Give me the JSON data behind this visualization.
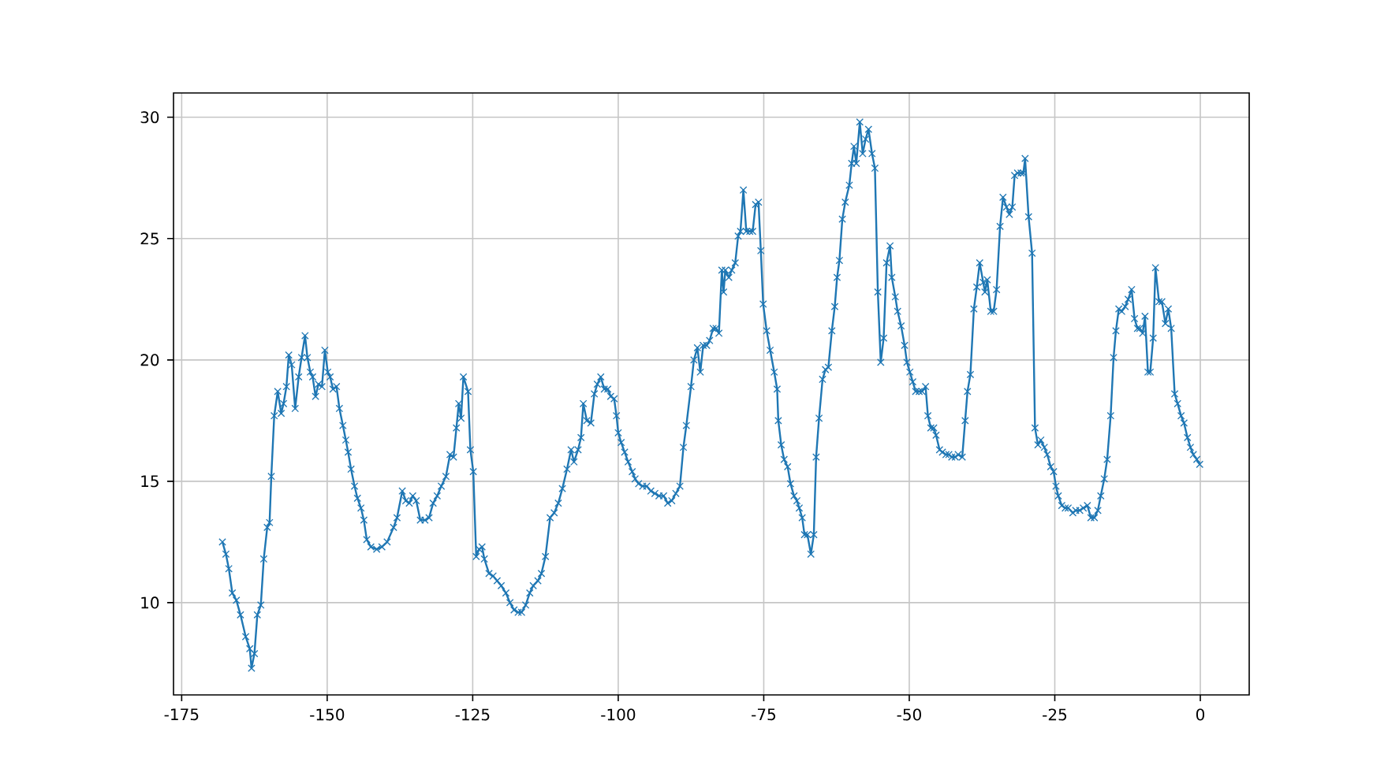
{
  "chart_data": {
    "type": "line",
    "color": "#1f77b4",
    "marker": "cross",
    "line_style": "solid",
    "grid": true,
    "x": [
      -168.0,
      -167.4,
      -166.9,
      -166.3,
      -165.6,
      -164.9,
      -164.0,
      -163.3,
      -163.0,
      -162.5,
      -162.0,
      -161.4,
      -160.9,
      -160.3,
      -159.9,
      -159.6,
      -159.1,
      -158.5,
      -157.9,
      -157.5,
      -157.0,
      -156.6,
      -156.1,
      -155.5,
      -154.9,
      -154.4,
      -153.8,
      -153.4,
      -152.9,
      -152.5,
      -152.0,
      -151.5,
      -150.9,
      -150.4,
      -149.9,
      -149.5,
      -149.0,
      -148.4,
      -147.9,
      -147.3,
      -146.8,
      -146.4,
      -145.9,
      -145.3,
      -144.8,
      -144.2,
      -143.7,
      -143.2,
      -142.5,
      -141.5,
      -140.6,
      -139.7,
      -138.6,
      -138.0,
      -137.1,
      -136.5,
      -135.9,
      -135.3,
      -134.7,
      -134.0,
      -133.2,
      -132.5,
      -131.8,
      -131.1,
      -130.4,
      -129.6,
      -128.9,
      -128.3,
      -127.8,
      -127.4,
      -127.0,
      -126.6,
      -125.8,
      -125.4,
      -124.9,
      -124.4,
      -123.9,
      -123.4,
      -123.0,
      -122.2,
      -121.5,
      -120.8,
      -120.1,
      -119.3,
      -118.6,
      -117.9,
      -117.2,
      -116.6,
      -115.9,
      -115.2,
      -114.6,
      -113.8,
      -113.2,
      -112.5,
      -111.7,
      -111.0,
      -110.3,
      -109.6,
      -108.8,
      -108.1,
      -107.6,
      -106.9,
      -106.4,
      -106.0,
      -105.4,
      -104.7,
      -104.1,
      -103.6,
      -103.0,
      -102.4,
      -101.8,
      -101.3,
      -100.7,
      -100.3,
      -100.0,
      -99.5,
      -98.9,
      -98.3,
      -97.6,
      -97.1,
      -96.5,
      -95.8,
      -95.1,
      -94.4,
      -93.7,
      -93.0,
      -92.2,
      -91.5,
      -90.8,
      -90.1,
      -89.4,
      -88.8,
      -88.3,
      -87.5,
      -87.0,
      -86.4,
      -85.9,
      -85.4,
      -84.8,
      -84.3,
      -83.7,
      -83.2,
      -82.7,
      -82.2,
      -81.9,
      -81.6,
      -81.0,
      -80.5,
      -79.9,
      -79.4,
      -79.0,
      -78.5,
      -78.0,
      -77.4,
      -76.9,
      -76.4,
      -75.9,
      -75.5,
      -75.1,
      -74.5,
      -73.9,
      -73.2,
      -72.7,
      -72.5,
      -72.0,
      -71.5,
      -70.9,
      -70.4,
      -69.8,
      -69.3,
      -68.9,
      -68.4,
      -68.0,
      -67.5,
      -66.9,
      -66.4,
      -66.0,
      -65.5,
      -64.9,
      -64.4,
      -63.9,
      -63.3,
      -62.8,
      -62.4,
      -62.0,
      -61.5,
      -61.0,
      -60.3,
      -59.9,
      -59.5,
      -59.1,
      -58.5,
      -58.0,
      -57.5,
      -57.0,
      -56.4,
      -55.9,
      -55.4,
      -54.9,
      -54.4,
      -53.9,
      -53.3,
      -53.0,
      -52.4,
      -52.0,
      -51.4,
      -50.8,
      -50.4,
      -49.9,
      -49.4,
      -48.9,
      -48.3,
      -47.8,
      -47.2,
      -46.8,
      -46.3,
      -45.8,
      -45.4,
      -44.8,
      -44.3,
      -43.7,
      -43.2,
      -42.7,
      -42.1,
      -41.6,
      -40.9,
      -40.4,
      -40.0,
      -39.5,
      -38.9,
      -38.4,
      -37.9,
      -37.3,
      -37.0,
      -36.6,
      -36.0,
      -35.5,
      -35.0,
      -34.4,
      -33.9,
      -33.3,
      -32.8,
      -32.3,
      -31.9,
      -31.4,
      -30.8,
      -30.4,
      -30.1,
      -29.5,
      -28.9,
      -28.4,
      -27.9,
      -27.4,
      -26.8,
      -26.3,
      -25.7,
      -25.2,
      -24.8,
      -24.4,
      -23.8,
      -23.2,
      -22.7,
      -21.9,
      -21.4,
      -20.7,
      -20.1,
      -19.4,
      -18.8,
      -18.2,
      -17.6,
      -17.1,
      -16.5,
      -16.0,
      -15.4,
      -14.9,
      -14.5,
      -14.0,
      -13.5,
      -12.9,
      -12.4,
      -11.8,
      -11.3,
      -10.8,
      -10.4,
      -9.9,
      -9.5,
      -9.0,
      -8.6,
      -8.1,
      -7.7,
      -7.1,
      -6.6,
      -6.0,
      -5.5,
      -5.0,
      -4.4,
      -3.9,
      -3.3,
      -2.8,
      -2.2,
      -1.7,
      -1.2,
      -0.6,
      -0.1
    ],
    "values": [
      12.5,
      12.0,
      11.4,
      10.4,
      10.1,
      9.5,
      8.6,
      8.1,
      7.3,
      7.9,
      9.5,
      9.9,
      11.8,
      13.1,
      13.3,
      15.2,
      17.7,
      18.7,
      17.8,
      18.2,
      18.9,
      20.2,
      19.8,
      18.0,
      19.3,
      20.1,
      21.0,
      20.1,
      19.5,
      19.3,
      18.5,
      19.0,
      18.9,
      20.4,
      19.5,
      19.3,
      18.8,
      18.9,
      18.0,
      17.3,
      16.7,
      16.2,
      15.5,
      14.8,
      14.3,
      13.9,
      13.4,
      12.6,
      12.3,
      12.2,
      12.3,
      12.5,
      13.1,
      13.5,
      14.6,
      14.2,
      14.1,
      14.4,
      14.2,
      13.4,
      13.4,
      13.5,
      14.1,
      14.4,
      14.8,
      15.2,
      16.1,
      16.0,
      17.2,
      18.2,
      17.6,
      19.3,
      18.7,
      16.3,
      15.4,
      11.9,
      12.2,
      12.3,
      11.8,
      11.2,
      11.1,
      10.9,
      10.7,
      10.4,
      10.0,
      9.7,
      9.6,
      9.6,
      9.9,
      10.4,
      10.7,
      10.9,
      11.2,
      11.9,
      13.5,
      13.7,
      14.1,
      14.7,
      15.5,
      16.3,
      15.8,
      16.3,
      16.8,
      18.2,
      17.5,
      17.4,
      18.6,
      19.0,
      19.3,
      18.8,
      18.8,
      18.5,
      18.4,
      17.7,
      17.0,
      16.6,
      16.2,
      15.8,
      15.4,
      15.1,
      14.9,
      14.8,
      14.8,
      14.6,
      14.5,
      14.4,
      14.4,
      14.1,
      14.2,
      14.5,
      14.8,
      16.4,
      17.3,
      18.9,
      20.0,
      20.5,
      19.5,
      20.6,
      20.6,
      20.8,
      21.3,
      21.3,
      21.1,
      23.7,
      22.8,
      23.7,
      23.4,
      23.7,
      24.0,
      25.1,
      25.3,
      27.0,
      25.3,
      25.3,
      25.3,
      26.4,
      26.5,
      24.5,
      22.3,
      21.2,
      20.4,
      19.5,
      18.8,
      17.5,
      16.5,
      15.9,
      15.6,
      14.9,
      14.4,
      14.2,
      13.9,
      13.5,
      12.8,
      12.8,
      12.0,
      12.8,
      16.0,
      17.6,
      19.2,
      19.6,
      19.7,
      21.2,
      22.2,
      23.4,
      24.1,
      25.8,
      26.5,
      27.2,
      28.1,
      28.8,
      28.1,
      29.8,
      28.5,
      29.1,
      29.5,
      28.5,
      27.9,
      22.8,
      19.9,
      20.9,
      24.0,
      24.7,
      23.4,
      22.6,
      22.0,
      21.4,
      20.6,
      19.9,
      19.5,
      19.1,
      18.7,
      18.7,
      18.7,
      18.9,
      17.7,
      17.2,
      17.2,
      16.9,
      16.3,
      16.2,
      16.1,
      16.1,
      16.0,
      16.0,
      16.1,
      16.0,
      17.5,
      18.7,
      19.4,
      22.1,
      23.0,
      24.0,
      23.2,
      22.8,
      23.3,
      22.0,
      22.0,
      22.9,
      25.5,
      26.7,
      26.3,
      26.0,
      26.3,
      27.6,
      27.7,
      27.7,
      27.7,
      28.3,
      25.9,
      24.4,
      17.2,
      16.5,
      16.7,
      16.4,
      16.1,
      15.6,
      15.4,
      14.8,
      14.4,
      14.0,
      13.9,
      13.9,
      13.7,
      13.8,
      13.8,
      13.9,
      14.0,
      13.5,
      13.5,
      13.8,
      14.4,
      15.1,
      15.9,
      17.7,
      20.1,
      21.2,
      22.1,
      22.0,
      22.2,
      22.5,
      22.9,
      21.7,
      21.3,
      21.3,
      21.1,
      21.8,
      19.5,
      19.5,
      20.9,
      23.8,
      22.4,
      22.4,
      21.5,
      22.1,
      21.3,
      18.6,
      18.2,
      17.7,
      17.4,
      16.8,
      16.4,
      16.1,
      15.9,
      15.7
    ],
    "xlim": [
      -176.4,
      8.4
    ],
    "ylim": [
      6.2,
      31.0
    ],
    "xticks": [
      -175,
      -150,
      -125,
      -100,
      -75,
      -50,
      -25,
      0
    ],
    "yticks": [
      10,
      15,
      20,
      25,
      30
    ]
  }
}
